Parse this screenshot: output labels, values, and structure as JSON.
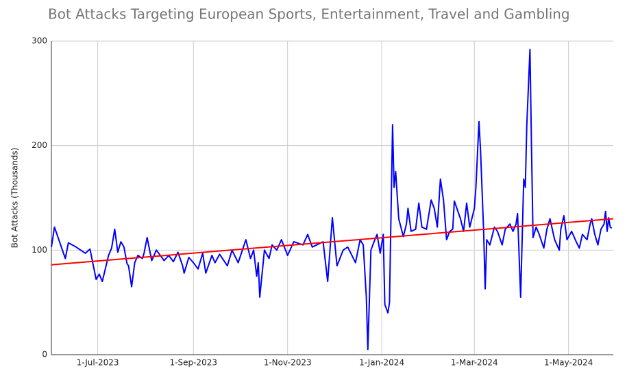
{
  "chart_data": {
    "type": "line",
    "title": "Bot Attacks Targeting European Sports, Entertainment, Travel and Gambling",
    "y_label": "Bot Attacks (Thousands)",
    "color": "#0000ff",
    "x": [
      "2023-06-01",
      "2023-06-03",
      "2023-06-10",
      "2023-06-12",
      "2023-06-17",
      "2023-06-23",
      "2023-06-26",
      "2023-06-30",
      "2023-07-02",
      "2023-07-04",
      "2023-07-08",
      "2023-07-10",
      "2023-07-12",
      "2023-07-14",
      "2023-07-16",
      "2023-07-18",
      "2023-07-20",
      "2023-07-21",
      "2023-07-23",
      "2023-07-25",
      "2023-07-27",
      "2023-07-30",
      "2023-07-31",
      "2023-08-02",
      "2023-08-05",
      "2023-08-08",
      "2023-08-13",
      "2023-08-16",
      "2023-08-19",
      "2023-08-22",
      "2023-08-25",
      "2023-08-26",
      "2023-08-29",
      "2023-09-01",
      "2023-09-04",
      "2023-09-07",
      "2023-09-09",
      "2023-09-13",
      "2023-09-15",
      "2023-09-18",
      "2023-09-23",
      "2023-09-26",
      "2023-09-30",
      "2023-10-05",
      "2023-10-08",
      "2023-10-10",
      "2023-10-12",
      "2023-10-13",
      "2023-10-14",
      "2023-10-17",
      "2023-10-20",
      "2023-10-22",
      "2023-10-25",
      "2023-10-28",
      "2023-11-01",
      "2023-11-05",
      "2023-11-11",
      "2023-11-14",
      "2023-11-17",
      "2023-11-24",
      "2023-11-27",
      "2023-11-30",
      "2023-12-03",
      "2023-12-07",
      "2023-12-10",
      "2023-12-15",
      "2023-12-18",
      "2023-12-20",
      "2023-12-22",
      "2023-12-23",
      "2023-12-25",
      "2023-12-27",
      "2023-12-29",
      "2023-12-31",
      "2024-01-02",
      "2024-01-03",
      "2024-01-05",
      "2024-01-06",
      "2024-01-08",
      "2024-01-09",
      "2024-01-10",
      "2024-01-12",
      "2024-01-15",
      "2024-01-17",
      "2024-01-18",
      "2024-01-20",
      "2024-01-23",
      "2024-01-25",
      "2024-01-27",
      "2024-01-30",
      "2024-02-02",
      "2024-02-04",
      "2024-02-06",
      "2024-02-08",
      "2024-02-10",
      "2024-02-12",
      "2024-02-14",
      "2024-02-16",
      "2024-02-17",
      "2024-02-21",
      "2024-02-23",
      "2024-02-25",
      "2024-02-27",
      "2024-03-01",
      "2024-03-02",
      "2024-03-04",
      "2024-03-05",
      "2024-03-07",
      "2024-03-08",
      "2024-03-09",
      "2024-03-11",
      "2024-03-14",
      "2024-03-16",
      "2024-03-19",
      "2024-03-21",
      "2024-03-24",
      "2024-03-26",
      "2024-03-28",
      "2024-03-29",
      "2024-03-31",
      "2024-04-02",
      "2024-04-03",
      "2024-04-04",
      "2024-04-06",
      "2024-04-07",
      "2024-04-08",
      "2024-04-10",
      "2024-04-12",
      "2024-04-15",
      "2024-04-17",
      "2024-04-19",
      "2024-04-22",
      "2024-04-25",
      "2024-04-26",
      "2024-04-28",
      "2024-04-30",
      "2024-05-03",
      "2024-05-06",
      "2024-05-08",
      "2024-05-10",
      "2024-05-13",
      "2024-05-15",
      "2024-05-16",
      "2024-05-18",
      "2024-05-20",
      "2024-05-22",
      "2024-05-24",
      "2024-05-25",
      "2024-05-26",
      "2024-05-27",
      "2024-05-28",
      "2024-05-29"
    ],
    "values": [
      103,
      122,
      92,
      107,
      103,
      97,
      101,
      72,
      77,
      70,
      95,
      102,
      120,
      98,
      108,
      103,
      87,
      85,
      65,
      88,
      95,
      92,
      97,
      112,
      90,
      100,
      90,
      95,
      89,
      98,
      85,
      78,
      93,
      88,
      82,
      97,
      78,
      95,
      88,
      96,
      85,
      100,
      88,
      110,
      92,
      100,
      75,
      88,
      55,
      100,
      92,
      105,
      100,
      110,
      95,
      108,
      105,
      115,
      103,
      108,
      70,
      131,
      85,
      100,
      103,
      88,
      110,
      105,
      55,
      5,
      100,
      108,
      115,
      97,
      115,
      48,
      40,
      50,
      220,
      160,
      175,
      130,
      113,
      125,
      140,
      118,
      120,
      145,
      122,
      120,
      148,
      140,
      122,
      168,
      148,
      110,
      118,
      120,
      147,
      130,
      118,
      145,
      122,
      140,
      160,
      223,
      195,
      118,
      63,
      110,
      105,
      122,
      118,
      105,
      120,
      125,
      118,
      125,
      135,
      55,
      168,
      160,
      220,
      292,
      200,
      112,
      122,
      115,
      102,
      120,
      130,
      110,
      100,
      120,
      133,
      110,
      118,
      108,
      102,
      115,
      110,
      125,
      130,
      115,
      105,
      120,
      125,
      137,
      118,
      131,
      122,
      121
    ],
    "trend_line": {
      "x": [
        "2023-06-01",
        "2024-05-30"
      ],
      "values": [
        86,
        130
      ],
      "color": "#ff0000"
    },
    "xlim": [
      "2023-06-01",
      "2024-05-30"
    ],
    "xticks": [
      {
        "value": "2023-07-01",
        "label": "1-Jul-2023"
      },
      {
        "value": "2023-09-01",
        "label": "1-Sep-2023"
      },
      {
        "value": "2023-11-01",
        "label": "1-Nov-2023"
      },
      {
        "value": "2024-01-01",
        "label": "1-Jan-2024"
      },
      {
        "value": "2024-03-01",
        "label": "1-Mar-2024"
      },
      {
        "value": "2024-05-01",
        "label": "1-May-2024"
      }
    ],
    "ylim": [
      0,
      300
    ],
    "yticks": [
      0,
      100,
      200,
      300
    ],
    "grid": true
  }
}
